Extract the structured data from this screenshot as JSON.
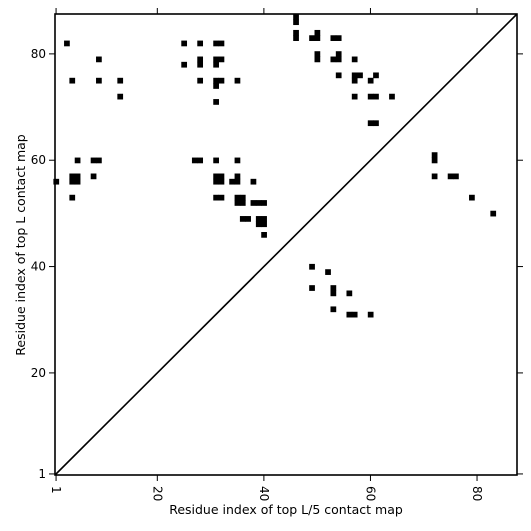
{
  "chart_data": {
    "type": "scatter",
    "subtype": "contact-map",
    "xlabel": "Residue index of top L/5 contact map",
    "ylabel": "Residue index of top L contact map",
    "xlim": [
      0.8,
      87.5
    ],
    "ylim": [
      0.8,
      87.5
    ],
    "x_ticks": [
      1,
      20,
      40,
      60,
      80
    ],
    "y_ticks": [
      1,
      20,
      40,
      60,
      80
    ],
    "x_tick_labels": [
      "1",
      "20",
      "40",
      "60",
      "80"
    ],
    "y_tick_labels": [
      "1",
      "20",
      "40",
      "60",
      "80"
    ],
    "x_tick_label_rotation": 90,
    "grid": false,
    "diagonal": true,
    "marker_color": "#000000",
    "points_upper": [
      [
        3,
        82
      ],
      [
        4,
        75
      ],
      [
        9,
        79
      ],
      [
        9,
        75
      ],
      [
        13,
        75
      ],
      [
        13,
        72
      ],
      [
        25,
        82
      ],
      [
        25,
        78
      ],
      [
        28,
        82
      ],
      [
        28,
        79
      ],
      [
        28,
        78
      ],
      [
        28,
        75
      ],
      [
        31,
        82
      ],
      [
        32,
        82
      ],
      [
        31,
        79
      ],
      [
        32,
        79
      ],
      [
        31,
        78
      ],
      [
        31,
        75
      ],
      [
        32,
        75
      ],
      [
        31,
        74
      ],
      [
        31,
        71
      ],
      [
        35,
        75
      ],
      [
        46,
        87
      ],
      [
        46,
        86
      ],
      [
        46,
        84
      ],
      [
        46,
        83
      ],
      [
        49,
        83
      ],
      [
        50,
        84
      ],
      [
        50,
        83
      ],
      [
        50,
        80
      ],
      [
        50,
        79
      ],
      [
        53,
        83
      ],
      [
        54,
        83
      ],
      [
        53,
        79
      ],
      [
        54,
        80
      ],
      [
        54,
        79
      ],
      [
        54,
        76
      ],
      [
        57,
        79
      ],
      [
        57,
        76
      ],
      [
        58,
        76
      ],
      [
        57,
        75
      ],
      [
        57,
        72
      ],
      [
        60,
        75
      ],
      [
        61,
        76
      ],
      [
        60,
        72
      ],
      [
        61,
        72
      ],
      [
        64,
        72
      ],
      [
        60,
        67
      ],
      [
        61,
        67
      ]
    ],
    "points_lower": [
      [
        1,
        56
      ],
      [
        4,
        57
      ],
      [
        5,
        57
      ],
      [
        4,
        56
      ],
      [
        5,
        56
      ],
      [
        4,
        53
      ],
      [
        5,
        60
      ],
      [
        8,
        60
      ],
      [
        9,
        60
      ],
      [
        8,
        57
      ],
      [
        27,
        60
      ],
      [
        28,
        60
      ],
      [
        31,
        60
      ],
      [
        31,
        57
      ],
      [
        32,
        57
      ],
      [
        31,
        56
      ],
      [
        32,
        56
      ],
      [
        31,
        53
      ],
      [
        32,
        53
      ],
      [
        34,
        56
      ],
      [
        35,
        56
      ],
      [
        35,
        57
      ],
      [
        35,
        60
      ],
      [
        35,
        53
      ],
      [
        36,
        53
      ],
      [
        35,
        52
      ],
      [
        36,
        52
      ],
      [
        36,
        49
      ],
      [
        37,
        49
      ],
      [
        38,
        56
      ],
      [
        38,
        52
      ],
      [
        39,
        52
      ],
      [
        40,
        52
      ],
      [
        39,
        49
      ],
      [
        40,
        49
      ],
      [
        39,
        48
      ],
      [
        40,
        48
      ],
      [
        40,
        46
      ],
      [
        49,
        40
      ],
      [
        52,
        39
      ],
      [
        53,
        36
      ],
      [
        53,
        35
      ],
      [
        49,
        36
      ],
      [
        56,
        35
      ],
      [
        53,
        32
      ],
      [
        56,
        31
      ],
      [
        57,
        31
      ],
      [
        60,
        31
      ],
      [
        72,
        61
      ],
      [
        72,
        60
      ],
      [
        72,
        57
      ],
      [
        75,
        57
      ],
      [
        76,
        57
      ],
      [
        79,
        53
      ],
      [
        83,
        50
      ]
    ]
  }
}
